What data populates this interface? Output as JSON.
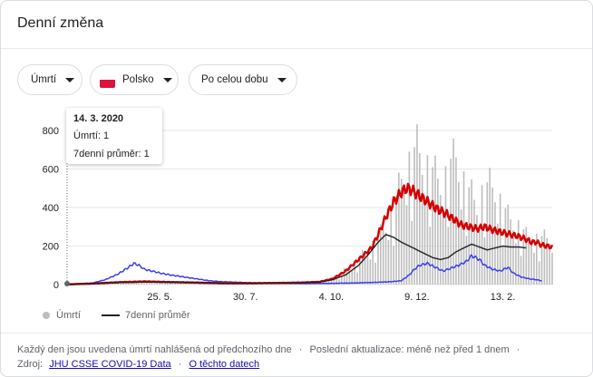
{
  "card": {
    "title": "Denní změna"
  },
  "filters": {
    "metric": "Úmrtí",
    "country": "Polsko",
    "range": "Po celou dobu"
  },
  "tooltip": {
    "date": "14. 3. 2020",
    "deaths_line": "Úmrtí: 1",
    "avg_line": "7denní průměr: 1"
  },
  "legend": {
    "deaths": "Úmrtí",
    "avg": "7denní průměr"
  },
  "footer": {
    "note": "Každý den jsou uvedena úmrtí nahlášená od předchozího dne",
    "bullet1": "·",
    "updated": "Poslední aktualizace: méně než před 1 dnem",
    "bullet2": "·",
    "source_label": "Zdroj:",
    "source_link": "JHU CSSE COVID-19 Data",
    "bullet3": "·",
    "about_link": "O těchto datech"
  },
  "chart_data": {
    "type": "bar",
    "title": "",
    "ylim": [
      0,
      800
    ],
    "y_ticks": [
      0,
      200,
      400,
      600,
      800
    ],
    "x_tick_labels": [
      "25. 5.",
      "30. 7.",
      "4. 10.",
      "9. 12.",
      "13. 2."
    ],
    "x_tick_day_index": [
      72,
      138,
      204,
      270,
      336
    ],
    "grid": true,
    "colors": {
      "bars": "#bdbdbd",
      "avg": "#202124",
      "red": "#d50000",
      "blue": "#3d3df0"
    },
    "series": [
      {
        "name": "Úmrtí",
        "type": "bar",
        "points": [
          [
            0,
            1
          ],
          [
            20,
            4
          ],
          [
            40,
            12
          ],
          [
            60,
            15
          ],
          [
            80,
            14
          ],
          [
            100,
            14
          ],
          [
            120,
            6
          ],
          [
            140,
            5
          ],
          [
            160,
            6
          ],
          [
            180,
            8
          ],
          [
            195,
            12
          ],
          [
            205,
            30
          ],
          [
            215,
            70
          ],
          [
            225,
            120
          ],
          [
            235,
            180
          ],
          [
            243,
            250
          ],
          [
            250,
            330
          ],
          [
            255,
            420
          ],
          [
            258,
            500
          ],
          [
            262,
            550
          ],
          [
            266,
            600
          ],
          [
            270,
            640
          ],
          [
            274,
            600
          ],
          [
            278,
            560
          ],
          [
            282,
            530
          ],
          [
            286,
            500
          ],
          [
            290,
            480
          ],
          [
            295,
            560
          ],
          [
            300,
            600
          ],
          [
            304,
            520
          ],
          [
            308,
            460
          ],
          [
            312,
            420
          ],
          [
            316,
            380
          ],
          [
            320,
            430
          ],
          [
            325,
            470
          ],
          [
            330,
            450
          ],
          [
            335,
            380
          ],
          [
            340,
            320
          ],
          [
            345,
            290
          ],
          [
            350,
            270
          ],
          [
            355,
            220
          ]
        ]
      },
      {
        "name": "7denní průměr",
        "type": "line",
        "points": [
          [
            0,
            1
          ],
          [
            20,
            5
          ],
          [
            40,
            10
          ],
          [
            60,
            13
          ],
          [
            80,
            12
          ],
          [
            100,
            11
          ],
          [
            120,
            6
          ],
          [
            140,
            6
          ],
          [
            160,
            7
          ],
          [
            180,
            9
          ],
          [
            195,
            13
          ],
          [
            205,
            25
          ],
          [
            215,
            50
          ],
          [
            225,
            100
          ],
          [
            233,
            160
          ],
          [
            240,
            220
          ],
          [
            246,
            260
          ],
          [
            252,
            245
          ],
          [
            258,
            220
          ],
          [
            264,
            200
          ],
          [
            270,
            180
          ],
          [
            276,
            160
          ],
          [
            282,
            140
          ],
          [
            288,
            130
          ],
          [
            294,
            140
          ],
          [
            300,
            170
          ],
          [
            306,
            190
          ],
          [
            312,
            210
          ],
          [
            318,
            195
          ],
          [
            324,
            180
          ],
          [
            330,
            190
          ],
          [
            336,
            200
          ],
          [
            342,
            195
          ],
          [
            348,
            195
          ],
          [
            354,
            190
          ]
        ]
      },
      {
        "type": "line",
        "points": [
          [
            0,
            1
          ],
          [
            20,
            5
          ],
          [
            40,
            12
          ],
          [
            60,
            16
          ],
          [
            80,
            13
          ],
          [
            100,
            10
          ],
          [
            120,
            7
          ],
          [
            140,
            7
          ],
          [
            160,
            8
          ],
          [
            180,
            10
          ],
          [
            195,
            14
          ],
          [
            205,
            30
          ],
          [
            215,
            70
          ],
          [
            225,
            130
          ],
          [
            235,
            190
          ],
          [
            240,
            260
          ],
          [
            246,
            350
          ],
          [
            252,
            430
          ],
          [
            258,
            480
          ],
          [
            262,
            500
          ],
          [
            266,
            490
          ],
          [
            270,
            470
          ],
          [
            276,
            440
          ],
          [
            282,
            410
          ],
          [
            286,
            390
          ],
          [
            292,
            370
          ],
          [
            298,
            340
          ],
          [
            304,
            310
          ],
          [
            310,
            300
          ],
          [
            316,
            290
          ],
          [
            322,
            300
          ],
          [
            330,
            280
          ],
          [
            336,
            270
          ],
          [
            342,
            260
          ],
          [
            348,
            250
          ],
          [
            354,
            235
          ],
          [
            358,
            220
          ],
          [
            362,
            220
          ],
          [
            366,
            205
          ],
          [
            370,
            200
          ],
          [
            374,
            195
          ]
        ]
      },
      {
        "type": "line",
        "points": [
          [
            0,
            1
          ],
          [
            20,
            8
          ],
          [
            30,
            25
          ],
          [
            40,
            55
          ],
          [
            48,
            90
          ],
          [
            52,
            110
          ],
          [
            56,
            100
          ],
          [
            60,
            80
          ],
          [
            66,
            70
          ],
          [
            72,
            60
          ],
          [
            80,
            50
          ],
          [
            90,
            40
          ],
          [
            100,
            30
          ],
          [
            110,
            20
          ],
          [
            120,
            15
          ],
          [
            140,
            10
          ],
          [
            160,
            6
          ],
          [
            180,
            5
          ],
          [
            200,
            6
          ],
          [
            220,
            8
          ],
          [
            240,
            12
          ],
          [
            250,
            15
          ],
          [
            258,
            20
          ],
          [
            264,
            50
          ],
          [
            268,
            80
          ],
          [
            272,
            100
          ],
          [
            278,
            110
          ],
          [
            284,
            90
          ],
          [
            290,
            70
          ],
          [
            296,
            85
          ],
          [
            302,
            100
          ],
          [
            308,
            120
          ],
          [
            312,
            150
          ],
          [
            318,
            130
          ],
          [
            322,
            100
          ],
          [
            328,
            80
          ],
          [
            334,
            70
          ],
          [
            340,
            90
          ],
          [
            344,
            60
          ],
          [
            350,
            40
          ],
          [
            356,
            30
          ],
          [
            362,
            25
          ],
          [
            366,
            20
          ]
        ]
      }
    ]
  }
}
